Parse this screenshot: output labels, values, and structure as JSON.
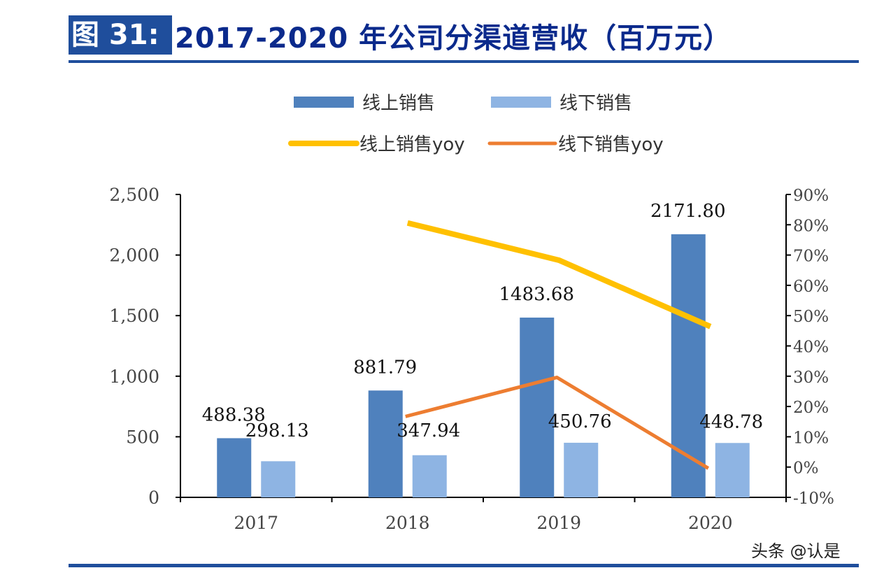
{
  "figure_label": "图 31:",
  "title": "2017-2020 年公司分渠道营收（百万元）",
  "watermark": "头条 @认是",
  "colors": {
    "online": "#4f81bd",
    "offline": "#8eb4e3",
    "online_yoy": "#ffc000",
    "offline_yoy": "#ed7d31",
    "title": "#0b2a8c",
    "rule": "#1f4e9c"
  },
  "chart_data": {
    "type": "bar+line",
    "categories": [
      "2017",
      "2018",
      "2019",
      "2020"
    ],
    "series": [
      {
        "name": "线上销售",
        "type": "bar",
        "axis": "left",
        "values": [
          488.38,
          881.79,
          1483.68,
          2171.8
        ],
        "labels": [
          "488.38",
          "881.79",
          "1483.68",
          "2171.80"
        ]
      },
      {
        "name": "线下销售",
        "type": "bar",
        "axis": "left",
        "values": [
          298.13,
          347.94,
          450.76,
          448.78
        ],
        "labels": [
          "298.13",
          "347.94",
          "450.76",
          "448.78"
        ]
      },
      {
        "name": "线上销售yoy",
        "type": "line",
        "axis": "right",
        "values": [
          null,
          80.6,
          68.3,
          46.4
        ]
      },
      {
        "name": "线下销售yoy",
        "type": "line",
        "axis": "right",
        "values": [
          null,
          16.7,
          29.6,
          -0.4
        ]
      }
    ],
    "left_axis": {
      "ylim": [
        0,
        2500
      ],
      "ticks": [
        "0",
        "500",
        "1,000",
        "1,500",
        "2,000",
        "2,500"
      ]
    },
    "right_axis": {
      "ylim": [
        -10,
        90
      ],
      "unit": "%",
      "ticks": [
        "-10%",
        "0%",
        "10%",
        "20%",
        "30%",
        "40%",
        "50%",
        "60%",
        "70%",
        "80%",
        "90%"
      ]
    },
    "legend_position": "top",
    "grid": false
  }
}
